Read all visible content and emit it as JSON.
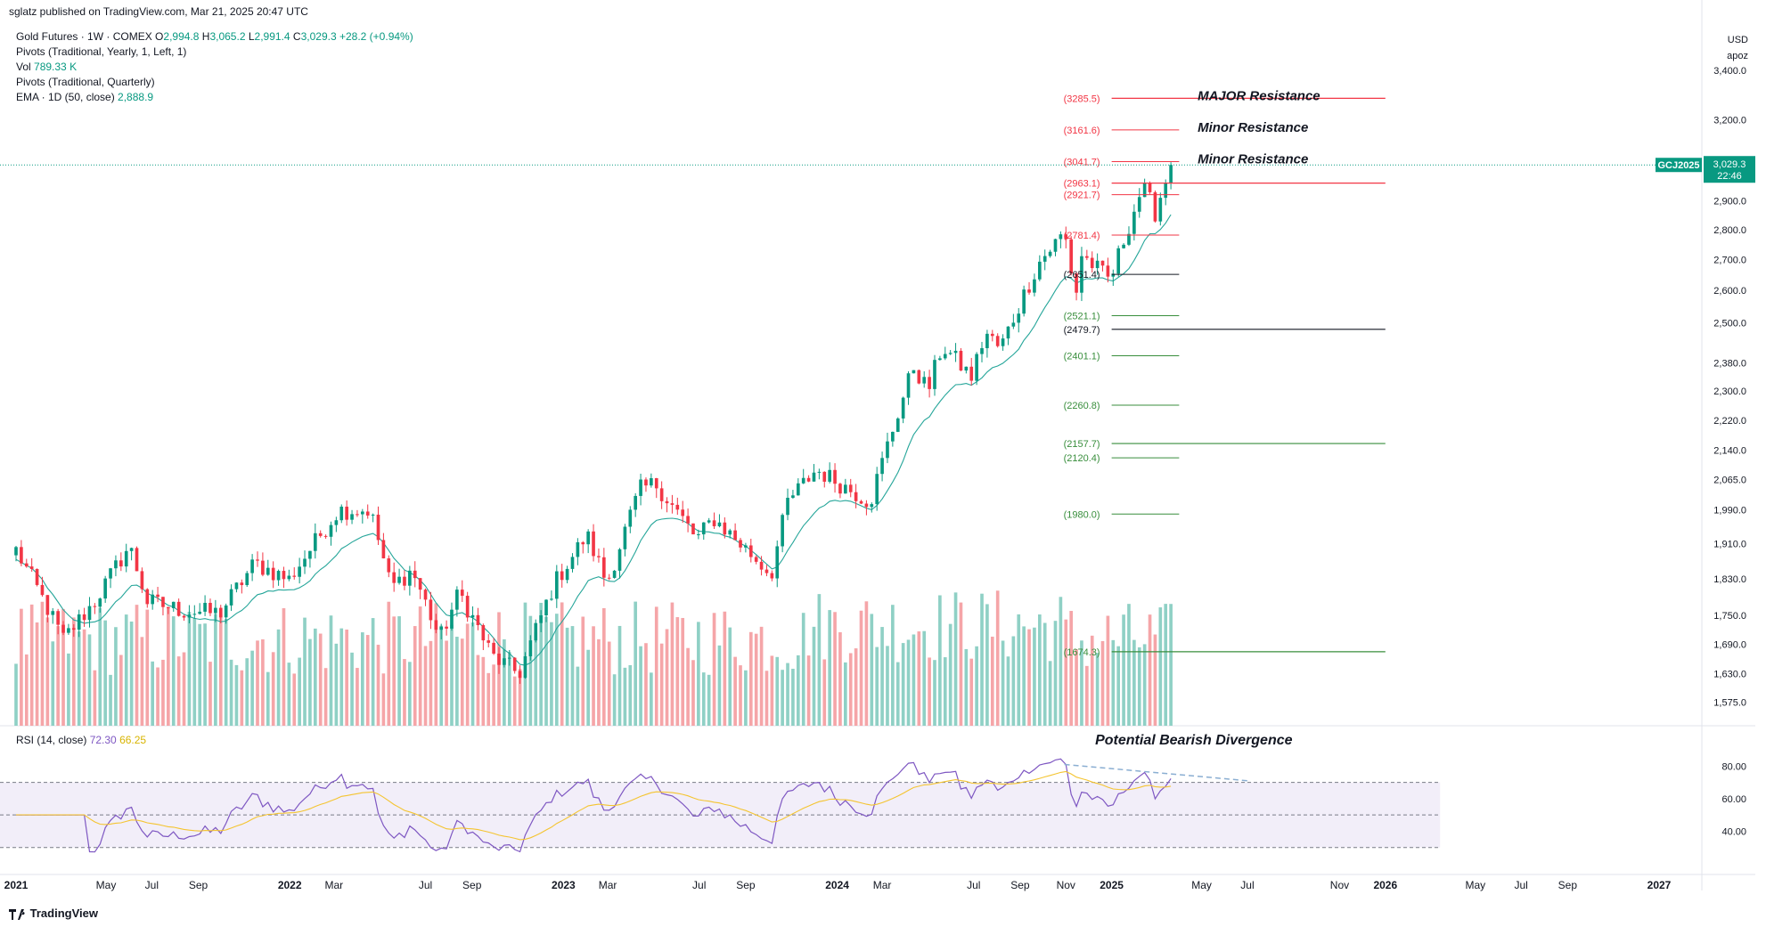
{
  "header": {
    "text": "sglatz published on TradingView.com, Mar 21, 2025 20:47 UTC"
  },
  "legend": {
    "line1": {
      "name": "Gold Futures · 1W · COMEX",
      "o_label": "O",
      "o": "2,994.8",
      "h_label": "H",
      "h": "3,065.2",
      "l_label": "L",
      "l": "2,991.4",
      "c_label": "C",
      "c": "3,029.3",
      "chg": "+28.2 (+0.94%)"
    },
    "line2": "Pivots (Traditional, Yearly, 1, Left, 1)",
    "line3_label": "Vol",
    "line3_value": "789.33 K",
    "line4": "Pivots (Traditional, Quarterly)",
    "line5_label": "EMA · 1D (50, close)",
    "line5_value": "2,888.9"
  },
  "rsi_legend": {
    "label": "RSI (14, close)",
    "rsi": "72.30",
    "ma": "66.25"
  },
  "axis": {
    "currency": "USD",
    "mode": "apoz"
  },
  "brand": "TradingView",
  "ticker": {
    "symbol": "GCJ2025",
    "price": "3,029.3",
    "countdown": "22:46"
  },
  "colors": {
    "up": "#089981",
    "down": "#f23645",
    "up_vol": "#8fd0c5",
    "down_vol": "#f5a5a8",
    "ema": "#26a69a",
    "rsi": "#7e57c2",
    "rsi_ma": "#f4c430",
    "pivot_red": "#f23645",
    "pivot_green": "#388e3c",
    "pivot_black": "#131722",
    "divergence": "#8aaed2"
  },
  "chart_data": {
    "type": "candlestick",
    "title": "",
    "y_scale": "log",
    "y_ticks": [
      "3,400.0",
      "3,200.0",
      "2,900.0",
      "2,800.0",
      "2,700.0",
      "2,600.0",
      "2,500.0",
      "2,380.0",
      "2,300.0",
      "2,220.0",
      "2,140.0",
      "2,065.0",
      "1,990.0",
      "1,910.0",
      "1,830.0",
      "1,750.0",
      "1,690.0",
      "1,630.0",
      "1,575.0"
    ],
    "y_tick_values": [
      3400,
      3200,
      2900,
      2800,
      2700,
      2600,
      2500,
      2380,
      2300,
      2220,
      2140,
      2065,
      1990,
      1910,
      1830,
      1750,
      1690,
      1630,
      1575
    ],
    "x_ticks": [
      {
        "label": "2021",
        "date": "2021-01-01",
        "bold": true
      },
      {
        "label": "May",
        "date": "2021-05-01"
      },
      {
        "label": "Jul",
        "date": "2021-07-01"
      },
      {
        "label": "Sep",
        "date": "2021-09-01"
      },
      {
        "label": "2022",
        "date": "2022-01-01",
        "bold": true
      },
      {
        "label": "Mar",
        "date": "2022-03-01"
      },
      {
        "label": "Jul",
        "date": "2022-07-01"
      },
      {
        "label": "Sep",
        "date": "2022-09-01"
      },
      {
        "label": "2023",
        "date": "2023-01-01",
        "bold": true
      },
      {
        "label": "Mar",
        "date": "2023-03-01"
      },
      {
        "label": "Jul",
        "date": "2023-07-01"
      },
      {
        "label": "Sep",
        "date": "2023-09-01"
      },
      {
        "label": "2024",
        "date": "2024-01-01",
        "bold": true
      },
      {
        "label": "Mar",
        "date": "2024-03-01"
      },
      {
        "label": "Jul",
        "date": "2024-07-01"
      },
      {
        "label": "Sep",
        "date": "2024-09-01"
      },
      {
        "label": "Nov",
        "date": "2024-11-01"
      },
      {
        "label": "2025",
        "date": "2025-01-01",
        "bold": true
      },
      {
        "label": "May",
        "date": "2025-05-01"
      },
      {
        "label": "Jul",
        "date": "2025-07-01"
      },
      {
        "label": "Nov",
        "date": "2025-11-01"
      },
      {
        "label": "2026",
        "date": "2026-01-01",
        "bold": true
      },
      {
        "label": "May",
        "date": "2026-05-01"
      },
      {
        "label": "Jul",
        "date": "2026-07-01"
      },
      {
        "label": "Sep",
        "date": "2026-09-01"
      },
      {
        "label": "2027",
        "date": "2027-01-01",
        "bold": true
      }
    ],
    "close_anchors": [
      {
        "date": "2021-01-01",
        "value": 1895
      },
      {
        "date": "2021-03-05",
        "value": 1700
      },
      {
        "date": "2021-04-16",
        "value": 1780
      },
      {
        "date": "2021-06-01",
        "value": 1905
      },
      {
        "date": "2021-06-25",
        "value": 1780
      },
      {
        "date": "2021-08-13",
        "value": 1760
      },
      {
        "date": "2021-09-30",
        "value": 1755
      },
      {
        "date": "2021-11-15",
        "value": 1865
      },
      {
        "date": "2021-12-31",
        "value": 1828
      },
      {
        "date": "2022-03-07",
        "value": 1990
      },
      {
        "date": "2022-04-18",
        "value": 1990
      },
      {
        "date": "2022-05-16",
        "value": 1810
      },
      {
        "date": "2022-06-13",
        "value": 1850
      },
      {
        "date": "2022-07-20",
        "value": 1700
      },
      {
        "date": "2022-08-15",
        "value": 1800
      },
      {
        "date": "2022-09-28",
        "value": 1665
      },
      {
        "date": "2022-11-03",
        "value": 1630
      },
      {
        "date": "2022-12-20",
        "value": 1820
      },
      {
        "date": "2023-02-01",
        "value": 1930
      },
      {
        "date": "2023-02-28",
        "value": 1820
      },
      {
        "date": "2023-04-13",
        "value": 2040
      },
      {
        "date": "2023-05-04",
        "value": 2055
      },
      {
        "date": "2023-06-28",
        "value": 1920
      },
      {
        "date": "2023-07-20",
        "value": 1970
      },
      {
        "date": "2023-10-05",
        "value": 1840
      },
      {
        "date": "2023-10-27",
        "value": 2010
      },
      {
        "date": "2023-12-04",
        "value": 2090
      },
      {
        "date": "2024-02-14",
        "value": 2010
      },
      {
        "date": "2024-04-12",
        "value": 2370
      },
      {
        "date": "2024-05-01",
        "value": 2300
      },
      {
        "date": "2024-05-20",
        "value": 2430
      },
      {
        "date": "2024-06-28",
        "value": 2340
      },
      {
        "date": "2024-07-17",
        "value": 2470
      },
      {
        "date": "2024-08-05",
        "value": 2420
      },
      {
        "date": "2024-09-26",
        "value": 2690
      },
      {
        "date": "2024-10-30",
        "value": 2790
      },
      {
        "date": "2024-11-14",
        "value": 2580
      },
      {
        "date": "2024-11-22",
        "value": 2715
      },
      {
        "date": "2024-12-30",
        "value": 2630
      },
      {
        "date": "2025-02-11",
        "value": 2950
      },
      {
        "date": "2025-02-28",
        "value": 2860
      },
      {
        "date": "2025-03-21",
        "value": 3029.3
      }
    ],
    "ema_label": "EMA (50)",
    "pivots": [
      {
        "label": "(3285.5)",
        "value": 3285.5,
        "color": "red",
        "span": "yearly"
      },
      {
        "label": "(3161.6)",
        "value": 3161.6,
        "color": "red",
        "span": "quarterly"
      },
      {
        "label": "(3041.7)",
        "value": 3041.7,
        "color": "red",
        "span": "quarterly"
      },
      {
        "label": "(2963.1)",
        "value": 2963.1,
        "color": "red",
        "span": "yearly"
      },
      {
        "label": "(2921.7)",
        "value": 2921.7,
        "color": "red",
        "span": "quarterly"
      },
      {
        "label": "(2781.4)",
        "value": 2781.4,
        "color": "red",
        "span": "quarterly"
      },
      {
        "label": "(2651.4)",
        "value": 2651.4,
        "color": "black",
        "span": "quarterly"
      },
      {
        "label": "(2521.1)",
        "value": 2521.1,
        "color": "green",
        "span": "quarterly"
      },
      {
        "label": "(2479.7)",
        "value": 2479.7,
        "color": "black",
        "span": "yearly"
      },
      {
        "label": "(2401.1)",
        "value": 2401.1,
        "color": "green",
        "span": "quarterly"
      },
      {
        "label": "(2260.8)",
        "value": 2260.8,
        "color": "green",
        "span": "quarterly"
      },
      {
        "label": "(2157.7)",
        "value": 2157.7,
        "color": "green",
        "span": "yearly"
      },
      {
        "label": "(2120.4)",
        "value": 2120.4,
        "color": "green",
        "span": "quarterly"
      },
      {
        "label": "(1980.0)",
        "value": 1980.0,
        "color": "green",
        "span": "quarterly"
      },
      {
        "label": "(1674.3)",
        "value": 1674.3,
        "color": "green",
        "span": "yearly"
      }
    ],
    "annotations": [
      {
        "text": "MAJOR Resistance",
        "value": 3285.5
      },
      {
        "text": "Minor Resistance",
        "value": 3161.6
      },
      {
        "text": "Minor Resistance",
        "value": 3041.7
      }
    ],
    "rsi": {
      "title": "RSI (14, close)",
      "y_ticks": [
        "80.00",
        "60.00",
        "40.00"
      ],
      "y_tick_values": [
        80,
        60,
        40
      ],
      "band": [
        30,
        70
      ],
      "middle": 50,
      "annotation": "Potential Bearish Divergence",
      "divergence_line": {
        "from_date": "2024-10-30",
        "from_value": 81,
        "to_date": "2025-07-01",
        "to_value": 71
      },
      "current": 72.3,
      "ma_current": 66.25
    }
  }
}
